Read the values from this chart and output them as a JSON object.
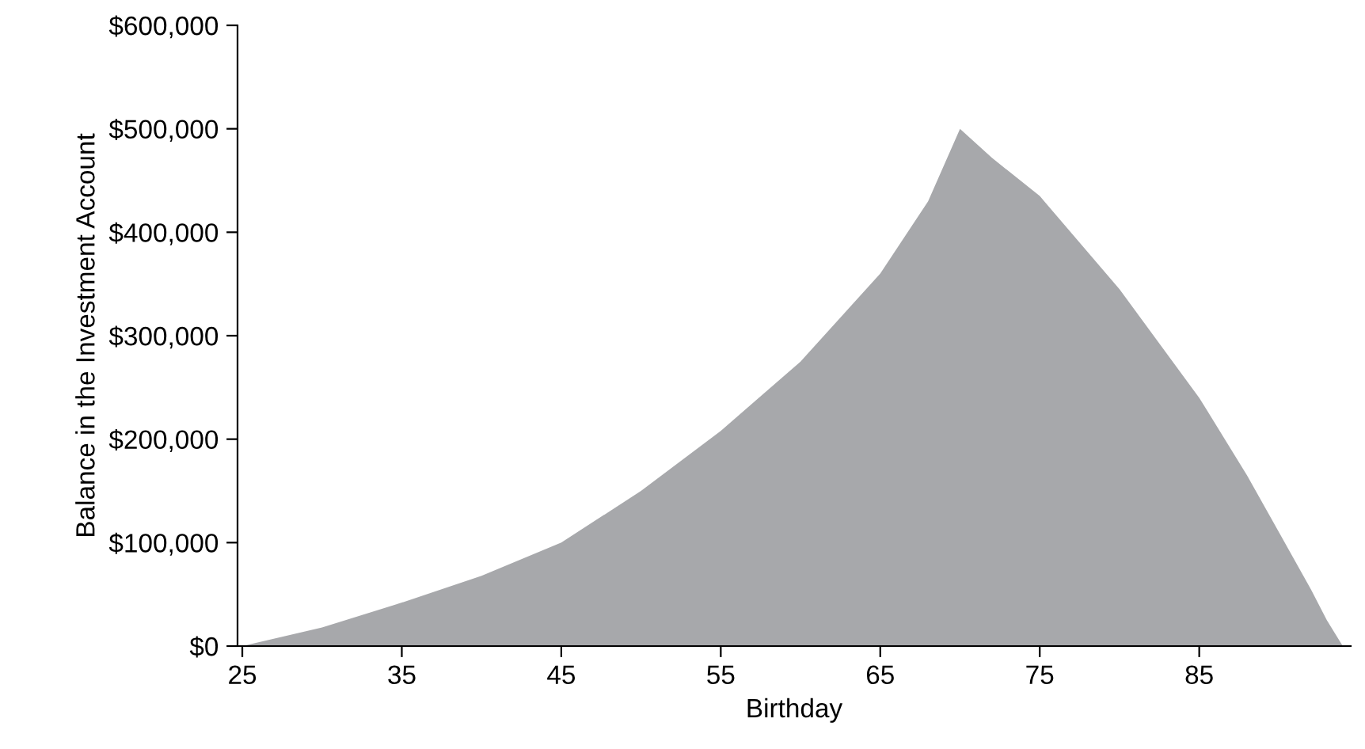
{
  "chart_data": {
    "type": "area",
    "xlabel": "Birthday",
    "ylabel": "Balance in the Investment Account",
    "x": [
      25,
      30,
      35,
      40,
      45,
      50,
      55,
      60,
      65,
      68,
      70,
      72,
      75,
      80,
      85,
      88,
      90,
      92,
      93,
      94
    ],
    "series": [
      {
        "color": "#a7a8ab",
        "values": [
          0,
          18000,
          42000,
          68000,
          100000,
          150000,
          208000,
          275000,
          360000,
          430000,
          500000,
          472000,
          435000,
          345000,
          240000,
          165000,
          110000,
          55000,
          25000,
          0
        ]
      }
    ],
    "xlim": [
      24.7,
      94.5
    ],
    "xticks": [
      25,
      35,
      45,
      55,
      65,
      75,
      85
    ],
    "ylim": [
      0,
      600000
    ],
    "yticks": [
      {
        "value": 0,
        "label": "$0"
      },
      {
        "value": 100000,
        "label": "$100,000"
      },
      {
        "value": 200000,
        "label": "$200,000"
      },
      {
        "value": 300000,
        "label": "$300,000"
      },
      {
        "value": 400000,
        "label": "$400,000"
      },
      {
        "value": 500000,
        "label": "$500,000"
      },
      {
        "value": 600000,
        "label": "$600,000"
      }
    ],
    "grid": false,
    "legend": false
  }
}
